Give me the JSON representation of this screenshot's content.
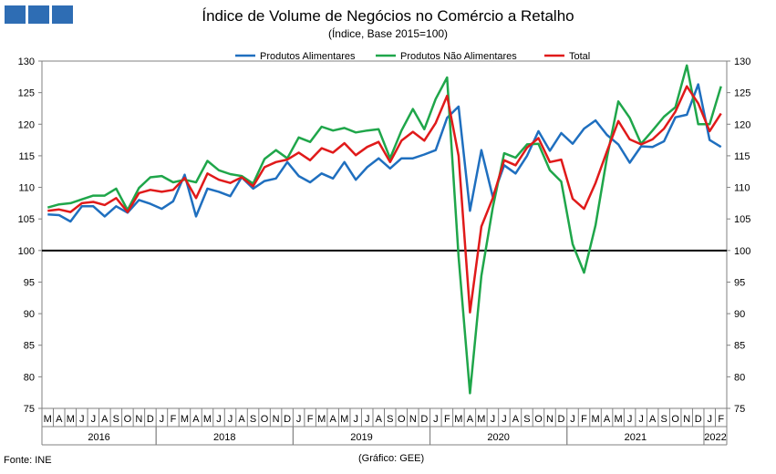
{
  "header": {
    "title": "Índice de Volume de Negócios no Comércio a Retalho",
    "subtitle": "(Índice, Base 2015=100)"
  },
  "footer": {
    "source": "Fonte: INE",
    "credit": "(Gráfico: GEE)"
  },
  "colors": {
    "logo": "#2e6db4",
    "alimentares": "#1f6fbf",
    "nao_alimentares": "#1fa64a",
    "total": "#e01a1a",
    "reference": "#000000"
  },
  "chart_data": {
    "type": "line",
    "ylim": [
      75,
      130
    ],
    "yticks": [
      75,
      80,
      85,
      90,
      95,
      100,
      105,
      110,
      115,
      120,
      125,
      130
    ],
    "reference_line": 100,
    "legend_position": "top-center",
    "x": [
      "M",
      "A",
      "M",
      "J",
      "J",
      "A",
      "S",
      "O",
      "N",
      "D",
      "J",
      "F",
      "M",
      "A",
      "M",
      "J",
      "J",
      "A",
      "S",
      "O",
      "N",
      "D",
      "J",
      "F",
      "M",
      "A",
      "M",
      "J",
      "J",
      "A",
      "S",
      "O",
      "N",
      "D",
      "J",
      "F",
      "M",
      "A",
      "M",
      "J",
      "J",
      "A",
      "S",
      "O",
      "N",
      "D",
      "J",
      "F",
      "M",
      "A",
      "M",
      "J",
      "J",
      "A",
      "S",
      "O",
      "N",
      "D",
      "J",
      "F"
    ],
    "year_groups": [
      {
        "label": "2016",
        "start": 0,
        "end": 10
      },
      {
        "label": "2018",
        "start": 10,
        "end": 22
      },
      {
        "label": "2019",
        "start": 22,
        "end": 34
      },
      {
        "label": "2020",
        "start": 34,
        "end": 46
      },
      {
        "label": "2021",
        "start": 46,
        "end": 58
      },
      {
        "label": "2022",
        "start": 58,
        "end": 60
      }
    ],
    "series": [
      {
        "name": "Produtos Alimentares",
        "color": "#1f6fbf",
        "values": [
          105.7,
          105.6,
          104.6,
          107.0,
          107.0,
          105.4,
          107.0,
          106.0,
          108.0,
          107.4,
          106.6,
          107.8,
          112.0,
          105.4,
          109.8,
          109.3,
          108.6,
          111.6,
          109.8,
          111.0,
          111.4,
          114.0,
          111.8,
          110.8,
          112.2,
          111.4,
          114.0,
          111.2,
          113.2,
          114.6,
          113.0,
          114.6,
          114.6,
          115.2,
          115.9,
          121.0,
          122.8,
          106.3,
          115.9,
          108.5,
          113.5,
          112.2,
          115.0,
          118.9,
          115.8,
          118.6,
          116.9,
          119.3,
          120.6,
          118.3,
          116.8,
          113.9,
          116.5,
          116.4,
          117.3,
          121.1,
          121.5,
          126.3,
          117.5,
          116.4
        ]
      },
      {
        "name": "Produtos Não Alimentares",
        "color": "#1fa64a",
        "values": [
          106.8,
          107.3,
          107.5,
          108.1,
          108.7,
          108.7,
          109.8,
          106.4,
          109.9,
          111.6,
          111.8,
          110.8,
          111.2,
          110.8,
          114.2,
          112.7,
          112.1,
          111.8,
          110.6,
          114.5,
          115.9,
          114.6,
          117.9,
          117.2,
          119.6,
          119.0,
          119.4,
          118.7,
          119.0,
          119.2,
          114.6,
          119.0,
          122.4,
          119.2,
          124.0,
          127.4,
          99.0,
          77.4,
          96.0,
          106.8,
          115.4,
          114.7,
          116.8,
          116.9,
          112.7,
          110.9,
          101.0,
          96.5,
          104.0,
          114.7,
          123.6,
          121.0,
          116.9,
          119.0,
          121.2,
          122.7,
          129.3,
          120.0,
          120.0,
          126.0
        ]
      },
      {
        "name": "Total",
        "color": "#e01a1a",
        "values": [
          106.3,
          106.5,
          106.1,
          107.5,
          107.7,
          107.2,
          108.3,
          106.1,
          109.1,
          109.6,
          109.3,
          109.6,
          111.5,
          108.3,
          112.2,
          111.2,
          110.7,
          111.6,
          110.2,
          113.2,
          114.0,
          114.4,
          115.5,
          114.3,
          116.2,
          115.5,
          117.0,
          115.1,
          116.4,
          117.2,
          114.0,
          117.4,
          118.8,
          117.4,
          120.2,
          124.5,
          115.0,
          90.2,
          103.8,
          108.3,
          114.3,
          113.5,
          116.3,
          117.8,
          114.0,
          114.4,
          108.2,
          106.6,
          110.7,
          115.7,
          120.5,
          117.6,
          116.8,
          117.6,
          119.3,
          122.0,
          126.0,
          123.3,
          118.9,
          121.7
        ]
      }
    ]
  }
}
